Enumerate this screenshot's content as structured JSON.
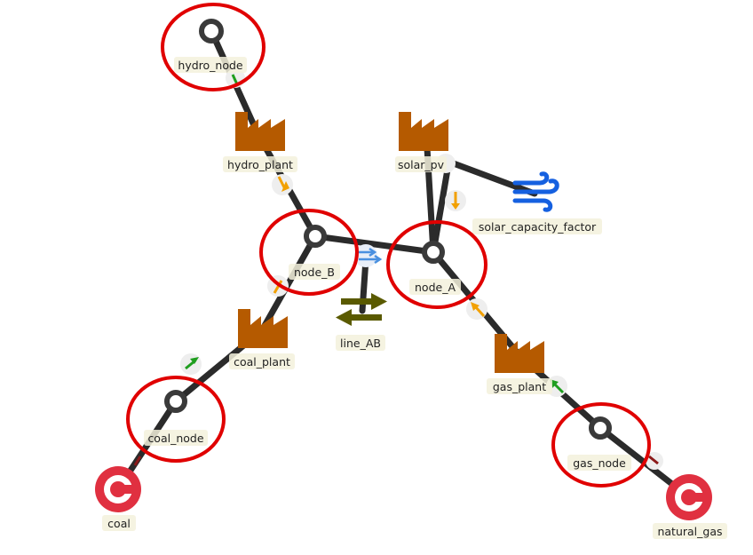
{
  "colors": {
    "edge": "#2b2b2b",
    "node_ring": "#3a3a3a",
    "unit": "#b55a00",
    "commodity": "#e03040",
    "connection": "#5a5a00",
    "wind": "#1560e0",
    "highlight": "#e00000",
    "arrow_in": "#f2a000",
    "arrow_out": "#1f9e1f",
    "arrow_dark": "#8b1a1a",
    "label_bg": "#f3f1dc"
  },
  "labels": {
    "hydro_node": "hydro_node",
    "hydro_plant": "hydro_plant",
    "solar_pv": "solar_pv",
    "solar_capacity_factor": "solar_capacity_factor",
    "node_B": "node_B",
    "node_A": "node_A",
    "line_AB": "line_AB",
    "coal_plant": "coal_plant",
    "gas_plant": "gas_plant",
    "coal_node": "coal_node",
    "gas_node": "gas_node",
    "coal": "coal",
    "natural_gas": "natural_gas"
  },
  "icons": {
    "node": "ring-node-icon",
    "unit": "factory-icon",
    "commodity": "commodity-c-icon",
    "connection": "exchange-arrows-icon",
    "parameter": "wind-icon"
  }
}
